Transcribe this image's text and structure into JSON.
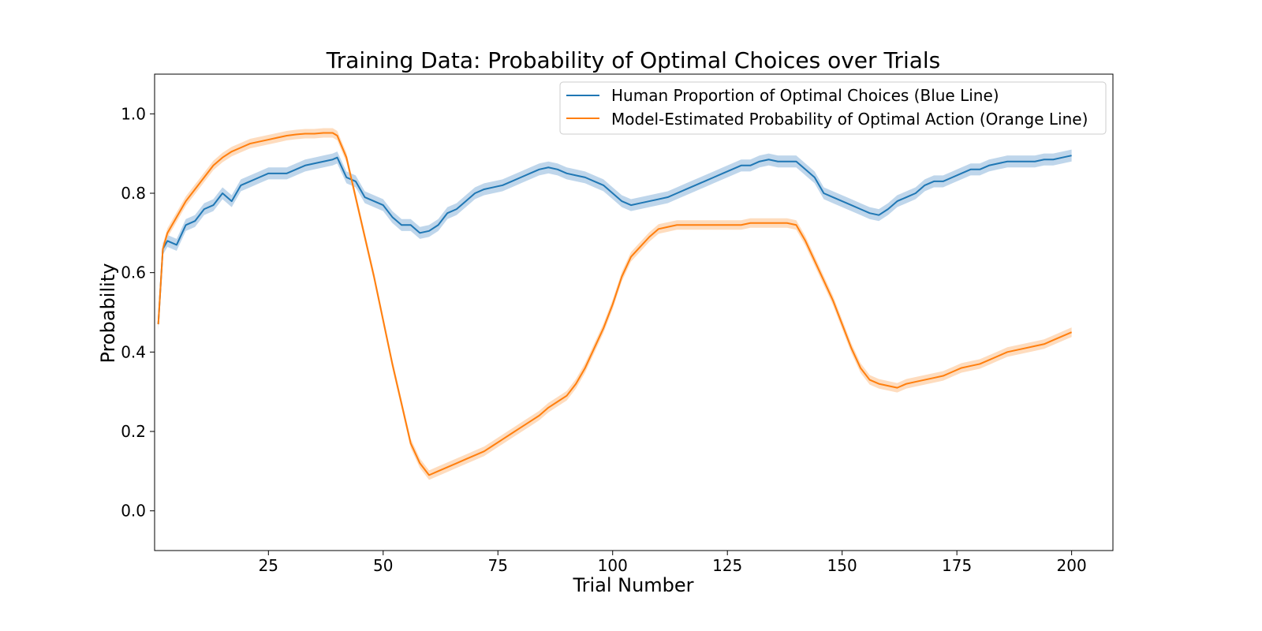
{
  "chart_data": {
    "type": "line",
    "title": "Training Data: Probability of Optimal Choices over Trials",
    "xlabel": "Trial Number",
    "ylabel": "Probability",
    "xlim": [
      0.2,
      209
    ],
    "ylim": [
      -0.1,
      1.1
    ],
    "xticks": [
      25,
      50,
      75,
      100,
      125,
      150,
      175,
      200
    ],
    "yticks": [
      0.0,
      0.2,
      0.4,
      0.6,
      0.8,
      1.0
    ],
    "xtick_labels": [
      "25",
      "50",
      "75",
      "100",
      "125",
      "150",
      "175",
      "200"
    ],
    "ytick_labels": [
      "0.0",
      "0.2",
      "0.4",
      "0.6",
      "0.8",
      "1.0"
    ],
    "grid": false,
    "legend_position": "top-right",
    "series": [
      {
        "name": "Human Proportion of Optimal Choices (Blue Line)",
        "color": "#1f77b4",
        "band_color": "#aac8e4",
        "band_halfwidth": 0.015,
        "x": [
          1,
          2,
          3,
          5,
          7,
          9,
          11,
          13,
          15,
          17,
          19,
          21,
          23,
          25,
          27,
          29,
          31,
          33,
          35,
          37,
          39,
          40,
          42,
          44,
          46,
          48,
          50,
          52,
          54,
          56,
          58,
          60,
          62,
          64,
          66,
          68,
          70,
          72,
          74,
          76,
          78,
          80,
          82,
          84,
          86,
          88,
          90,
          92,
          94,
          96,
          98,
          100,
          102,
          104,
          106,
          108,
          110,
          112,
          114,
          116,
          118,
          120,
          122,
          124,
          126,
          128,
          130,
          132,
          134,
          136,
          138,
          140,
          142,
          144,
          146,
          148,
          150,
          152,
          154,
          156,
          158,
          160,
          162,
          164,
          166,
          168,
          170,
          172,
          174,
          176,
          178,
          180,
          182,
          184,
          186,
          188,
          190,
          192,
          194,
          196,
          198,
          200
        ],
        "values": [
          0.47,
          0.66,
          0.68,
          0.67,
          0.72,
          0.73,
          0.76,
          0.77,
          0.8,
          0.78,
          0.82,
          0.83,
          0.84,
          0.85,
          0.85,
          0.85,
          0.86,
          0.87,
          0.875,
          0.88,
          0.885,
          0.89,
          0.84,
          0.83,
          0.79,
          0.78,
          0.77,
          0.74,
          0.72,
          0.72,
          0.7,
          0.705,
          0.72,
          0.75,
          0.76,
          0.78,
          0.8,
          0.81,
          0.815,
          0.82,
          0.83,
          0.84,
          0.85,
          0.86,
          0.865,
          0.86,
          0.85,
          0.845,
          0.84,
          0.83,
          0.82,
          0.8,
          0.78,
          0.77,
          0.775,
          0.78,
          0.785,
          0.79,
          0.8,
          0.81,
          0.82,
          0.83,
          0.84,
          0.85,
          0.86,
          0.87,
          0.87,
          0.88,
          0.885,
          0.88,
          0.88,
          0.88,
          0.86,
          0.84,
          0.8,
          0.79,
          0.78,
          0.77,
          0.76,
          0.75,
          0.745,
          0.76,
          0.78,
          0.79,
          0.8,
          0.82,
          0.83,
          0.83,
          0.84,
          0.85,
          0.86,
          0.86,
          0.87,
          0.875,
          0.88,
          0.88,
          0.88,
          0.88,
          0.885,
          0.885,
          0.89,
          0.895
        ]
      },
      {
        "name": "Model-Estimated Probability of Optimal Action (Orange Line)",
        "color": "#ff7f0e",
        "band_color": "#fdd0a8",
        "band_halfwidth": 0.012,
        "x": [
          1,
          2,
          3,
          5,
          7,
          9,
          11,
          13,
          15,
          17,
          19,
          21,
          23,
          25,
          27,
          29,
          31,
          33,
          35,
          37,
          39,
          40,
          42,
          44,
          46,
          48,
          50,
          52,
          54,
          56,
          58,
          60,
          62,
          64,
          66,
          68,
          70,
          72,
          74,
          76,
          78,
          80,
          82,
          84,
          86,
          88,
          90,
          92,
          94,
          96,
          98,
          100,
          102,
          104,
          106,
          108,
          110,
          112,
          114,
          116,
          118,
          120,
          122,
          124,
          126,
          128,
          130,
          132,
          134,
          136,
          138,
          140,
          142,
          144,
          146,
          148,
          150,
          152,
          154,
          156,
          158,
          160,
          162,
          164,
          166,
          168,
          170,
          172,
          174,
          176,
          178,
          180,
          182,
          184,
          186,
          188,
          190,
          192,
          194,
          196,
          198,
          200
        ],
        "values": [
          0.47,
          0.66,
          0.7,
          0.74,
          0.78,
          0.81,
          0.84,
          0.87,
          0.89,
          0.905,
          0.915,
          0.925,
          0.93,
          0.935,
          0.94,
          0.945,
          0.948,
          0.95,
          0.95,
          0.952,
          0.952,
          0.945,
          0.89,
          0.79,
          0.69,
          0.59,
          0.48,
          0.37,
          0.27,
          0.17,
          0.12,
          0.09,
          0.1,
          0.11,
          0.12,
          0.13,
          0.14,
          0.15,
          0.165,
          0.18,
          0.195,
          0.21,
          0.225,
          0.24,
          0.26,
          0.275,
          0.29,
          0.32,
          0.36,
          0.41,
          0.46,
          0.52,
          0.59,
          0.64,
          0.665,
          0.69,
          0.71,
          0.715,
          0.72,
          0.72,
          0.72,
          0.72,
          0.72,
          0.72,
          0.72,
          0.72,
          0.725,
          0.725,
          0.725,
          0.725,
          0.725,
          0.72,
          0.68,
          0.63,
          0.58,
          0.53,
          0.47,
          0.41,
          0.36,
          0.33,
          0.32,
          0.315,
          0.31,
          0.32,
          0.325,
          0.33,
          0.335,
          0.34,
          0.35,
          0.36,
          0.365,
          0.37,
          0.38,
          0.39,
          0.4,
          0.405,
          0.41,
          0.415,
          0.42,
          0.43,
          0.44,
          0.45
        ]
      }
    ]
  }
}
